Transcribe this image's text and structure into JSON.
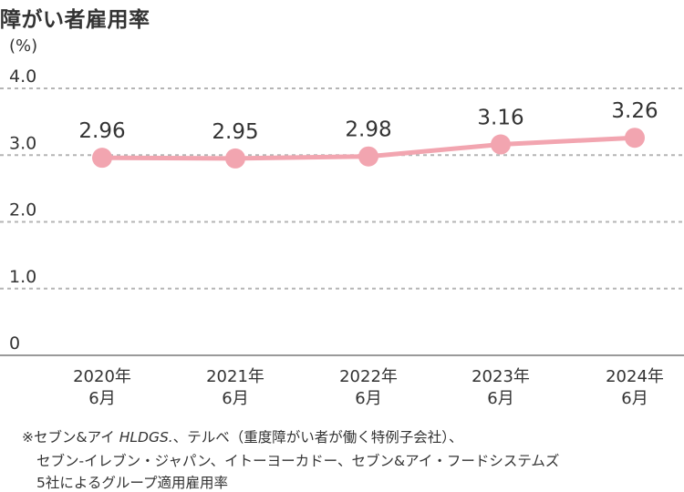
{
  "title": "障がい者雇用率",
  "chart_data": {
    "type": "line",
    "unit_label": "(%)",
    "categories": [
      [
        "2020年",
        "6月"
      ],
      [
        "2021年",
        "6月"
      ],
      [
        "2022年",
        "6月"
      ],
      [
        "2023年",
        "6月"
      ],
      [
        "2024年",
        "6月"
      ]
    ],
    "values": [
      2.96,
      2.95,
      2.98,
      3.16,
      3.26
    ],
    "data_labels": [
      "2.96",
      "2.95",
      "2.98",
      "3.16",
      "3.26"
    ],
    "y_ticks": [
      "0",
      "1.0",
      "2.0",
      "3.0",
      "4.0"
    ],
    "ylim": [
      0,
      4.0
    ],
    "grid": true,
    "line_color": "#f2a5b0",
    "grid_color": "#b5b5b5"
  },
  "footnote": {
    "line1_prefix": "※セブン&アイ ",
    "line1_italic": "HLDGS.",
    "line1_suffix": "、テルベ（重度障がい者が働く特例子会社）、",
    "line2": "セブン-イレブン・ジャパン、イトーヨーカドー、セブン&アイ・フードシステムズ",
    "line3": "5社によるグループ適用雇用率"
  }
}
